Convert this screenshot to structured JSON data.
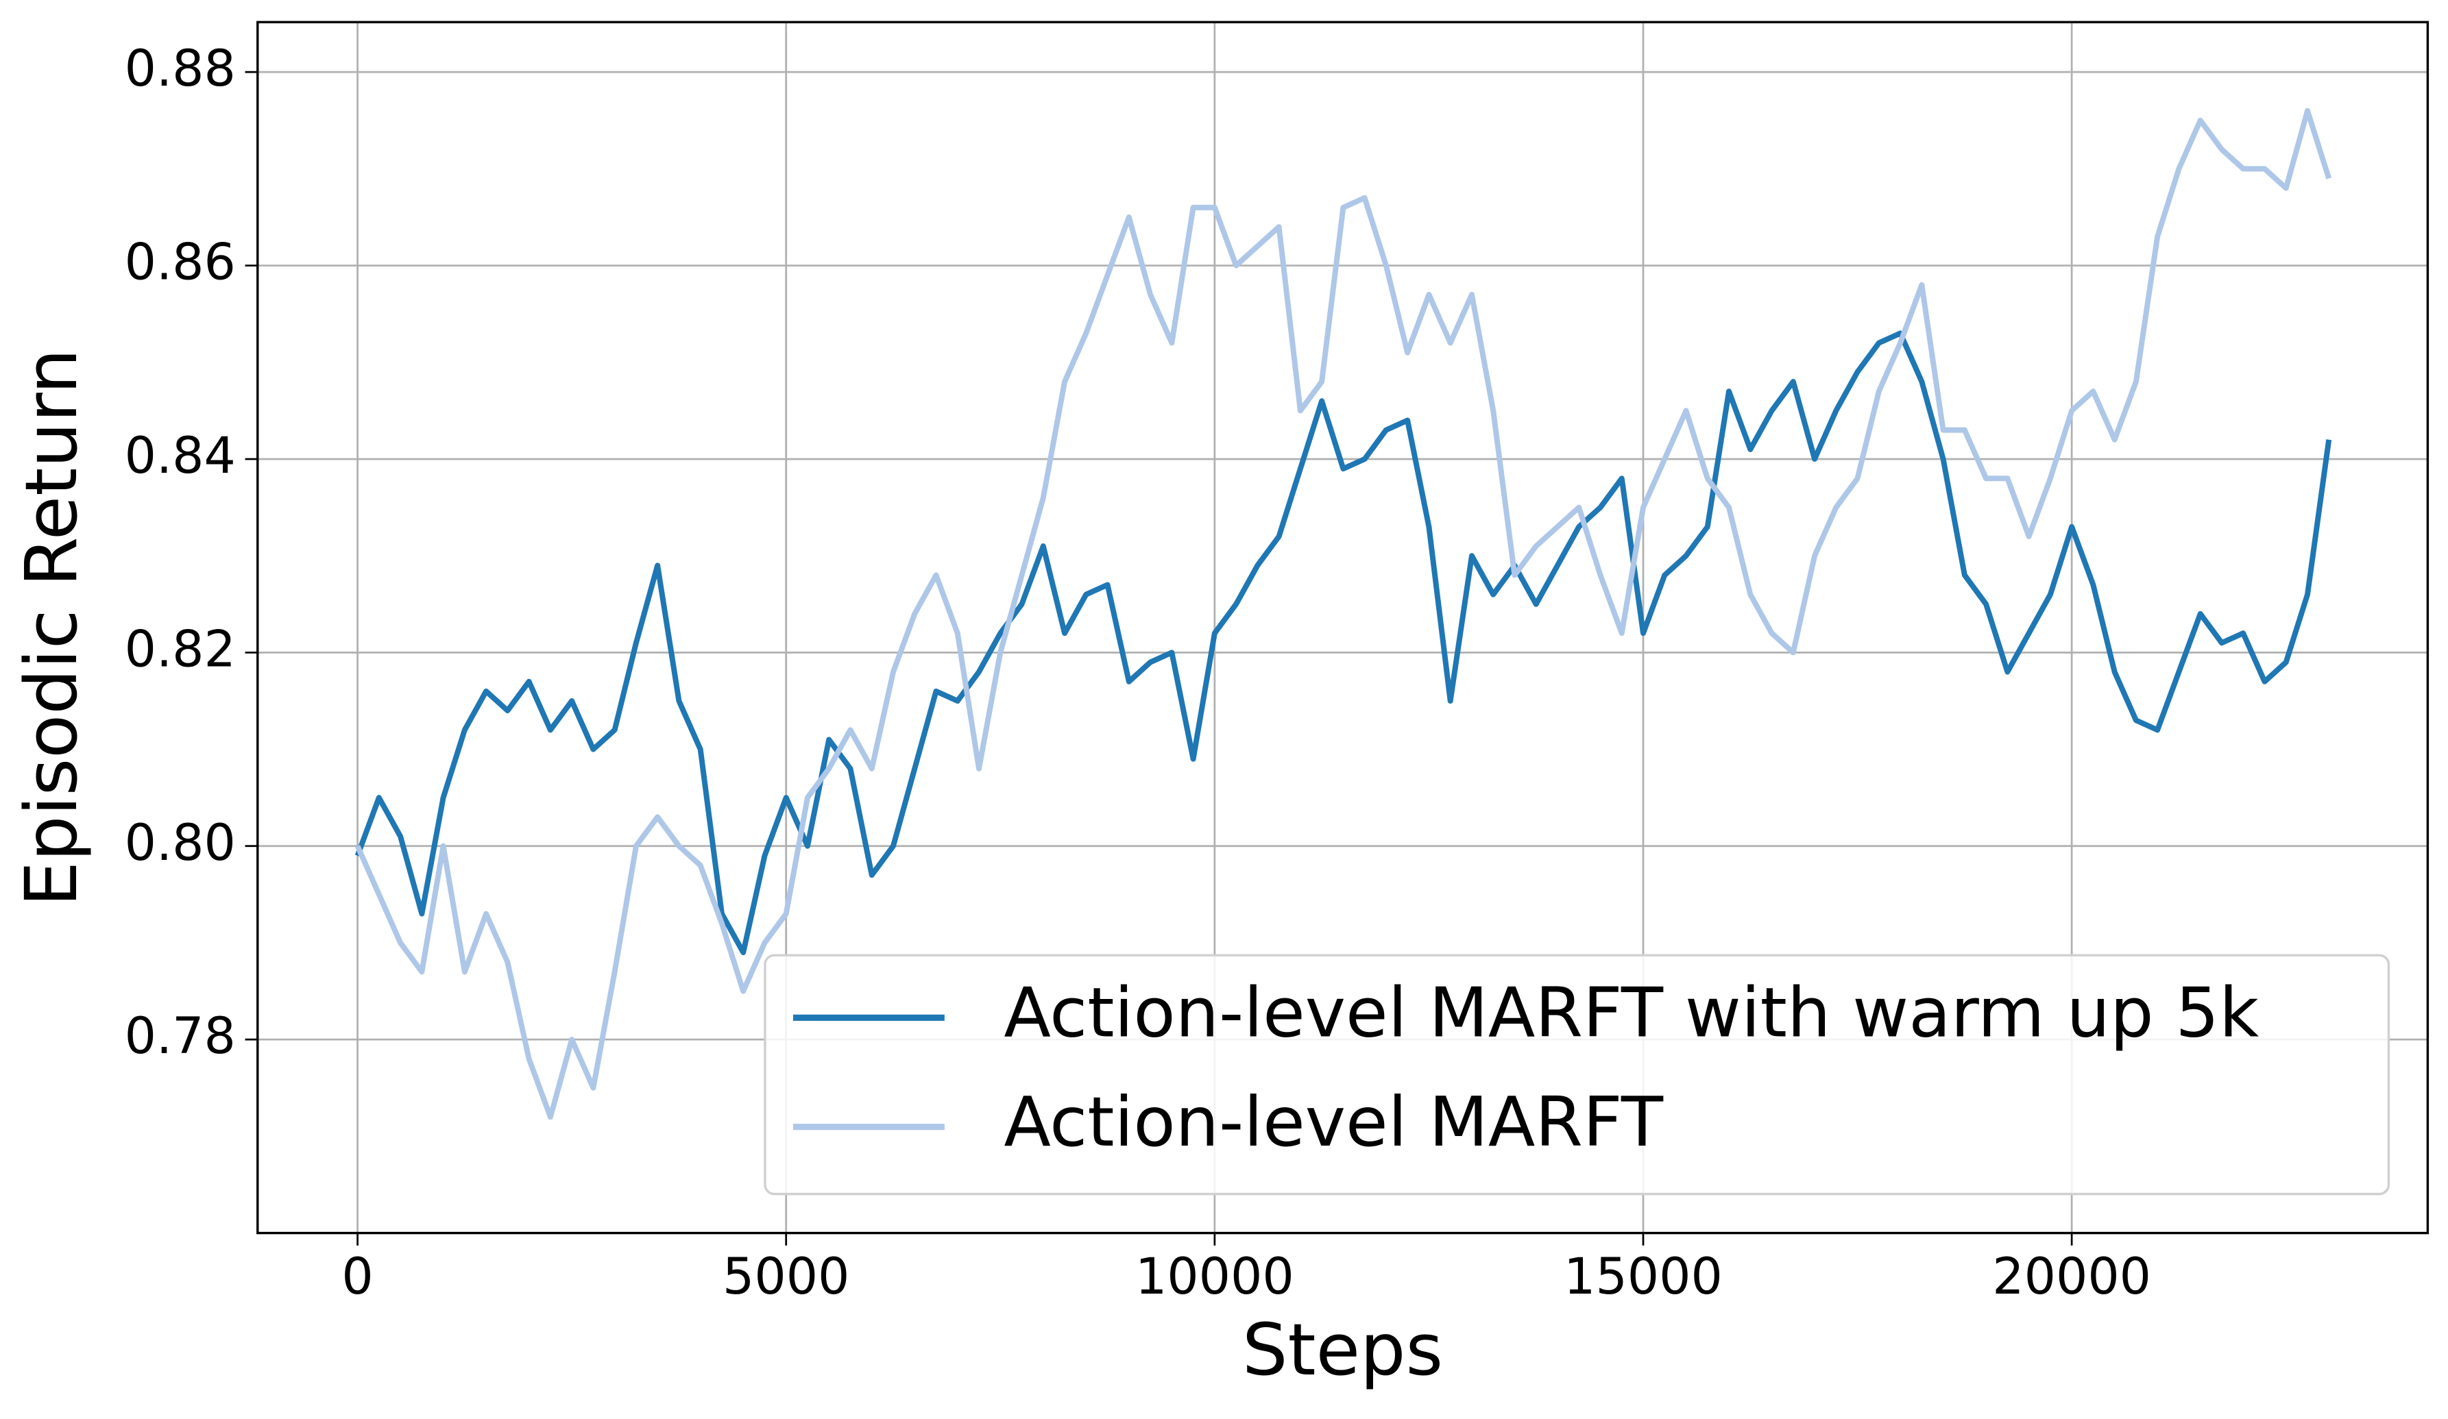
{
  "chart_data": {
    "type": "line",
    "xlabel": "Steps",
    "ylabel": "Episodic Return",
    "x": [
      0,
      250,
      500,
      750,
      1000,
      1250,
      1500,
      1750,
      2000,
      2250,
      2500,
      2750,
      3000,
      3250,
      3500,
      3750,
      4000,
      4250,
      4500,
      4750,
      5000,
      5250,
      5500,
      5750,
      6000,
      6250,
      6500,
      6750,
      7000,
      7250,
      7500,
      7750,
      8000,
      8250,
      8500,
      8750,
      9000,
      9250,
      9500,
      9750,
      10000,
      10250,
      10500,
      10750,
      11000,
      11250,
      11500,
      11750,
      12000,
      12250,
      12500,
      12750,
      13000,
      13250,
      13500,
      13750,
      14000,
      14250,
      14500,
      14750,
      15000,
      15250,
      15500,
      15750,
      16000,
      16250,
      16500,
      16750,
      17000,
      17250,
      17500,
      17750,
      18000,
      18250,
      18500,
      18750,
      19000,
      19250,
      19500,
      19750,
      20000,
      20250,
      20500,
      20750,
      21000,
      21250,
      21500,
      21750,
      22000,
      22250,
      22500,
      22750,
      23000
    ],
    "series": [
      {
        "name": "Action-level MARFT with warm up 5k",
        "color": "#1f77b4",
        "values": [
          0.799,
          0.805,
          0.801,
          0.793,
          0.805,
          0.812,
          0.816,
          0.814,
          0.817,
          0.812,
          0.815,
          0.81,
          0.812,
          0.821,
          0.829,
          0.815,
          0.81,
          0.793,
          0.789,
          0.799,
          0.805,
          0.8,
          0.811,
          0.808,
          0.797,
          0.8,
          0.808,
          0.816,
          0.815,
          0.818,
          0.822,
          0.825,
          0.831,
          0.822,
          0.826,
          0.827,
          0.817,
          0.819,
          0.82,
          0.809,
          0.822,
          0.825,
          0.829,
          0.832,
          0.839,
          0.846,
          0.839,
          0.84,
          0.843,
          0.844,
          0.833,
          0.815,
          0.83,
          0.826,
          0.829,
          0.825,
          0.829,
          0.833,
          0.835,
          0.838,
          0.822,
          0.828,
          0.83,
          0.833,
          0.847,
          0.841,
          0.845,
          0.848,
          0.84,
          0.845,
          0.849,
          0.852,
          0.853,
          0.848,
          0.84,
          0.828,
          0.825,
          0.818,
          0.822,
          0.826,
          0.833,
          0.827,
          0.818,
          0.813,
          0.812,
          0.818,
          0.824,
          0.821,
          0.822,
          0.817,
          0.819,
          0.826,
          0.842
        ]
      },
      {
        "name": "Action-level MARFT",
        "color": "#aec7e8",
        "values": [
          0.8,
          0.795,
          0.79,
          0.787,
          0.8,
          0.787,
          0.793,
          0.788,
          0.778,
          0.772,
          0.78,
          0.775,
          0.787,
          0.8,
          0.803,
          0.8,
          0.798,
          0.792,
          0.785,
          0.79,
          0.793,
          0.805,
          0.808,
          0.812,
          0.808,
          0.818,
          0.824,
          0.828,
          0.822,
          0.808,
          0.82,
          0.828,
          0.836,
          0.848,
          0.853,
          0.859,
          0.865,
          0.857,
          0.852,
          0.866,
          0.866,
          0.86,
          0.862,
          0.864,
          0.845,
          0.848,
          0.866,
          0.867,
          0.86,
          0.851,
          0.857,
          0.852,
          0.857,
          0.845,
          0.828,
          0.831,
          0.833,
          0.835,
          0.828,
          0.822,
          0.835,
          0.84,
          0.845,
          0.838,
          0.835,
          0.826,
          0.822,
          0.82,
          0.83,
          0.835,
          0.838,
          0.847,
          0.852,
          0.858,
          0.843,
          0.843,
          0.838,
          0.838,
          0.832,
          0.838,
          0.845,
          0.847,
          0.842,
          0.848,
          0.863,
          0.87,
          0.875,
          0.872,
          0.87,
          0.87,
          0.868,
          0.876,
          0.869
        ]
      }
    ],
    "xlim": [
      -1166,
      24153
    ],
    "ylim": [
      0.76,
      0.88516
    ],
    "xticks": [
      0,
      5000,
      10000,
      15000,
      20000
    ],
    "yticks": [
      0.78,
      {
        "value": 0.8,
        "label": "0.80"
      },
      0.82,
      0.84,
      0.86,
      0.88
    ],
    "grid": true,
    "legend": "lower right"
  }
}
